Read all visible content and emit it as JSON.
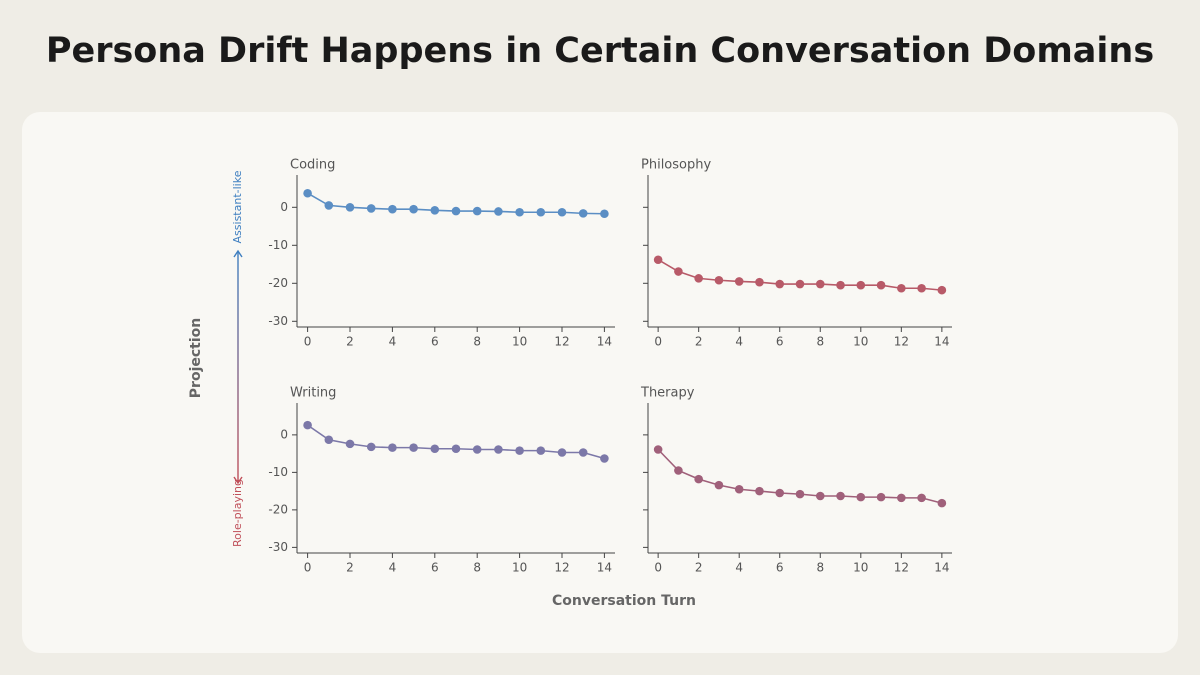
{
  "title": "Persona Drift Happens in Certain Conversation Domains",
  "y_label": "Projection",
  "y_top_label": "Assistant-like",
  "y_bottom_label": "Role-playing",
  "x_label": "Conversation Turn",
  "chart_data": [
    {
      "type": "line",
      "title": "Coding",
      "color": "#5b8ec4",
      "x": [
        0,
        1,
        2,
        3,
        4,
        5,
        6,
        7,
        8,
        9,
        10,
        11,
        12,
        13,
        14
      ],
      "values": [
        3.7,
        0.5,
        0,
        -0.3,
        -0.5,
        -0.5,
        -0.8,
        -1,
        -1,
        -1.1,
        -1.3,
        -1.3,
        -1.3,
        -1.6,
        -1.7
      ],
      "xlim": [
        -0.5,
        14.5
      ],
      "xticks": [
        0,
        2,
        4,
        6,
        8,
        10,
        12,
        14
      ],
      "ylim": [
        -31.5,
        8.5
      ],
      "yticks": [
        0,
        -10,
        -20,
        -30
      ],
      "ytick_labels": true
    },
    {
      "type": "line",
      "title": "Philosophy",
      "color": "#b85a68",
      "x": [
        0,
        1,
        2,
        3,
        4,
        5,
        6,
        7,
        8,
        9,
        10,
        11,
        12,
        13,
        14
      ],
      "values": [
        -13.8,
        -16.9,
        -18.7,
        -19.2,
        -19.5,
        -19.7,
        -20.2,
        -20.2,
        -20.2,
        -20.5,
        -20.5,
        -20.5,
        -21.3,
        -21.3,
        -21.8
      ],
      "xlim": [
        -0.5,
        14.5
      ],
      "xticks": [
        0,
        2,
        4,
        6,
        8,
        10,
        12,
        14
      ],
      "ylim": [
        -31.5,
        8.5
      ],
      "yticks": [
        0,
        -10,
        -20,
        -30
      ],
      "ytick_labels": false
    },
    {
      "type": "line",
      "title": "Writing",
      "color": "#7c78a8",
      "x": [
        0,
        1,
        2,
        3,
        4,
        5,
        6,
        7,
        8,
        9,
        10,
        11,
        12,
        13,
        14
      ],
      "values": [
        2.6,
        -1.3,
        -2.4,
        -3.2,
        -3.4,
        -3.4,
        -3.7,
        -3.7,
        -3.9,
        -3.9,
        -4.2,
        -4.2,
        -4.7,
        -4.7,
        -6.3
      ],
      "xlim": [
        -0.5,
        14.5
      ],
      "xticks": [
        0,
        2,
        4,
        6,
        8,
        10,
        12,
        14
      ],
      "ylim": [
        -31.5,
        8.5
      ],
      "yticks": [
        0,
        -10,
        -20,
        -30
      ],
      "ytick_labels": true
    },
    {
      "type": "line",
      "title": "Therapy",
      "color": "#a0607a",
      "x": [
        0,
        1,
        2,
        3,
        4,
        5,
        6,
        7,
        8,
        9,
        10,
        11,
        12,
        13,
        14
      ],
      "values": [
        -3.9,
        -9.5,
        -11.8,
        -13.4,
        -14.5,
        -15,
        -15.5,
        -15.8,
        -16.3,
        -16.3,
        -16.6,
        -16.6,
        -16.8,
        -16.8,
        -18.2
      ],
      "xlim": [
        -0.5,
        14.5
      ],
      "xticks": [
        0,
        2,
        4,
        6,
        8,
        10,
        12,
        14
      ],
      "ylim": [
        -31.5,
        8.5
      ],
      "yticks": [
        0,
        -10,
        -20,
        -30
      ],
      "ytick_labels": false
    }
  ]
}
